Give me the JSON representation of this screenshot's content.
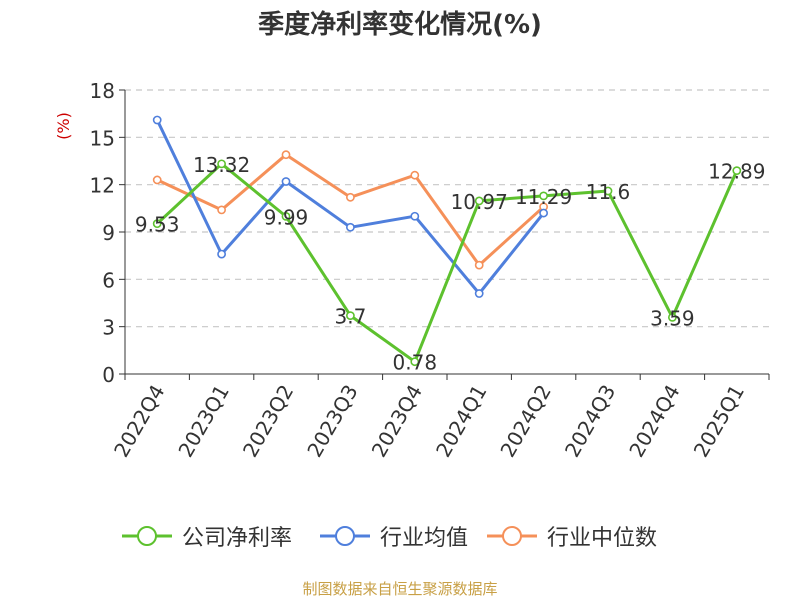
{
  "chart_data": {
    "type": "line",
    "title": "季度净利率变化情况(%)",
    "ylabel": "(%)",
    "categories": [
      "2022Q4",
      "2023Q1",
      "2023Q2",
      "2023Q3",
      "2023Q4",
      "2024Q1",
      "2024Q2",
      "2024Q3",
      "2024Q4",
      "2025Q1"
    ],
    "yticks": [
      0,
      3,
      6,
      9,
      12,
      15,
      18
    ],
    "ylim": [
      0,
      18
    ],
    "grid": true,
    "legend_position": "bottom",
    "series": [
      {
        "name": "公司净利率",
        "color": "#5dc12e",
        "values": [
          9.53,
          13.32,
          9.99,
          3.7,
          0.78,
          10.97,
          11.29,
          11.6,
          3.59,
          12.89
        ],
        "labels": [
          "9.53",
          "13.32",
          "9.99",
          "3.7",
          "0.78",
          "10.97",
          "11.29",
          "11.6",
          "3.59",
          "12.89"
        ]
      },
      {
        "name": "行业均值",
        "color": "#4f7fdc",
        "values": [
          16.1,
          7.6,
          12.2,
          9.3,
          10.0,
          5.1,
          10.2,
          null,
          null,
          null
        ]
      },
      {
        "name": "行业中位数",
        "color": "#f59059",
        "values": [
          12.3,
          10.4,
          13.9,
          11.2,
          12.6,
          6.9,
          10.6,
          null,
          null,
          null
        ]
      }
    ]
  },
  "footer": "制图数据来自恒生聚源数据库"
}
